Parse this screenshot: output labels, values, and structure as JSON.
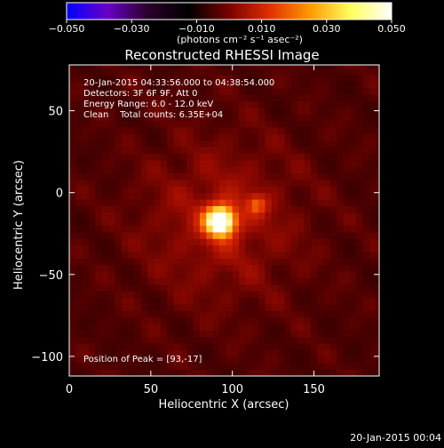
{
  "chart_data": {
    "type": "heatmap",
    "title": "Reconstructed RHESSI Image",
    "xlabel": "Heliocentric X (arcsec)",
    "ylabel": "Heliocentric Y (arcsec)",
    "xlim": [
      0,
      190
    ],
    "ylim": [
      -112,
      78
    ],
    "x_ticks": [
      0,
      50,
      100,
      150
    ],
    "y_ticks": [
      -100,
      -50,
      0,
      50
    ],
    "grid": false,
    "colorbar": {
      "range": [
        -0.05,
        0.05
      ],
      "ticks": [
        "-0.050",
        "-0.030",
        "-0.010",
        "0.010",
        "0.030",
        "0.050"
      ],
      "units_label": "(photons cm⁻² s⁻¹ asec⁻²)",
      "colormap": [
        "#0000ff",
        "#6a00c8",
        "#2a002a",
        "#000000",
        "#7a0000",
        "#e03000",
        "#ff9a00",
        "#ffff60",
        "#ffffff"
      ],
      "position": "top"
    },
    "annotations": [
      "20-Jan-2015 04:33:56.000 to 04:38:54.000",
      "Detectors: 3F 6F 9F, Att 0",
      "Energy Range: 6.0 - 12.0 keV",
      "Clean    Total counts: 6.35E+04",
      "Position of Peak = [93,-17]"
    ],
    "sources": [
      {
        "name": "peak",
        "x": 93,
        "y": -17,
        "relative_intensity": 1.0
      },
      {
        "name": "secondary",
        "x": 115,
        "y": -7,
        "relative_intensity": 0.35
      }
    ],
    "peak_position": [
      93,
      -17
    ]
  },
  "footer": {
    "timestamp": "20-Jan-2015 00:04"
  }
}
